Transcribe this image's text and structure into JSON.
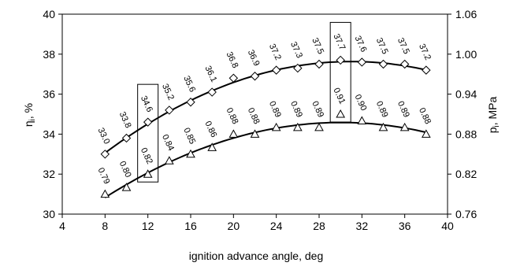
{
  "chart_data": {
    "type": "scatter",
    "xlabel": "ignition advance angle, deg",
    "ylabel_left_main": "η",
    "ylabel_left_sub": "i",
    "ylabel_left_unit": ", %",
    "ylabel_right_main": "p",
    "ylabel_right_sub": "i",
    "ylabel_right_unit": ", MPa",
    "xlim": [
      4,
      40
    ],
    "ylim_left": [
      30,
      40
    ],
    "ylim_right": [
      0.76,
      1.06
    ],
    "x_ticks": [
      "4",
      "8",
      "12",
      "16",
      "20",
      "24",
      "28",
      "32",
      "36",
      "40"
    ],
    "y_left_ticks": [
      "30",
      "32",
      "34",
      "36",
      "38",
      "40"
    ],
    "y_right_ticks": [
      "0.76",
      "0.82",
      "0.88",
      "0.94",
      "1.00",
      "1.06"
    ],
    "grid": false,
    "series": [
      {
        "axis": "left",
        "marker": "diamond",
        "x": [
          8,
          10,
          12,
          14,
          16,
          18,
          20,
          22,
          24,
          26,
          28,
          30,
          32,
          34,
          36,
          38
        ],
        "y": [
          33.0,
          33.8,
          34.6,
          35.2,
          35.6,
          36.1,
          36.8,
          36.9,
          37.2,
          37.3,
          37.5,
          37.7,
          37.6,
          37.5,
          37.5,
          37.2
        ],
        "labels": [
          "33.0",
          "33.8",
          "34.6",
          "35.2",
          "35.6",
          "36.1",
          "36.8",
          "36.9",
          "37.2",
          "37.3",
          "37.5",
          "37.7",
          "37.6",
          "37.5",
          "37.5",
          "37.2"
        ]
      },
      {
        "axis": "right",
        "marker": "triangle",
        "x": [
          8,
          10,
          12,
          14,
          16,
          18,
          20,
          22,
          24,
          26,
          28,
          30,
          32,
          34,
          36,
          38
        ],
        "y": [
          0.79,
          0.8,
          0.82,
          0.84,
          0.85,
          0.86,
          0.88,
          0.88,
          0.89,
          0.89,
          0.89,
          0.91,
          0.9,
          0.89,
          0.89,
          0.88
        ],
        "labels": [
          "0.79",
          "0.80",
          "0.82",
          "0.84",
          "0.85",
          "0.86",
          "0.88",
          "0.88",
          "0.89",
          "0.89",
          "0.89",
          "0.91",
          "0.90",
          "0.89",
          "0.89",
          "0.88"
        ]
      }
    ],
    "highlight_x": [
      12,
      30
    ]
  }
}
